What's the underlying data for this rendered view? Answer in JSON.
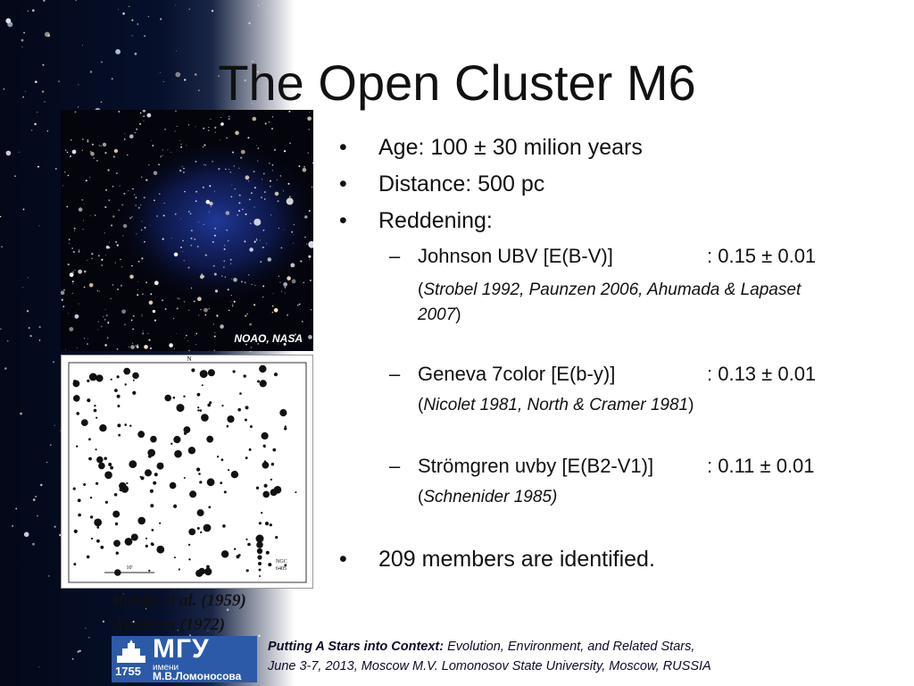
{
  "slide": {
    "title": "The Open Cluster M6",
    "photo_credit": "NOAO, NASA",
    "bullets": {
      "age": {
        "marker": "•",
        "text": "Age: 100 ± 30 milion years"
      },
      "distance": {
        "marker": "•",
        "text": "Distance: 500 pc"
      },
      "reddening": {
        "marker": "•",
        "text": "Reddening:"
      },
      "members": {
        "marker": "•",
        "text": "209 members are identified."
      }
    },
    "reddening_items": [
      {
        "marker": "–",
        "label": "Johnson UBV [E(B-V)]",
        "value": ": 0.15 ± 0.01",
        "cite_open": "(",
        "cite": "Strobel 1992, Paunzen 2006, Ahumada & Lapaset 2007",
        "cite_close": ")"
      },
      {
        "marker": "–",
        "label": "Geneva 7color [E(b-y)]",
        "value": ": 0.13 ± 0.01",
        "cite_open": "(",
        "cite": "Nicolet 1981, North & Cramer 1981",
        "cite_close": ")"
      },
      {
        "marker": "–",
        "label": "Strömgren uvby [E(B2-V1)]",
        "value": ": 0.11 ± 0.01",
        "cite_open": "(",
        "cite": "Schnenider 1985)",
        "cite_close": ""
      }
    ],
    "chart_refs": [
      "Rohlfs et al. (1959)",
      "Antalova (1972)"
    ],
    "chart_labels": {
      "north": "N",
      "scale": "10'",
      "ngc_line1": "NGC",
      "ngc_line2": "6405"
    },
    "logo": {
      "text": "МГУ",
      "year": "1755",
      "imeni": "имени",
      "name": "М.В.Ломоносова"
    },
    "footer": {
      "event": "Putting A Stars into Context:",
      "subtitle": " Evolution, Environment, and Related Stars,",
      "line2": "June 3-7, 2013, Moscow M.V. Lomonosov State University, Moscow, RUSSIA"
    },
    "colors": {
      "logo_blue": "#2c5aa8",
      "sky": "#040818",
      "nebula": "#1e3aa6"
    }
  }
}
